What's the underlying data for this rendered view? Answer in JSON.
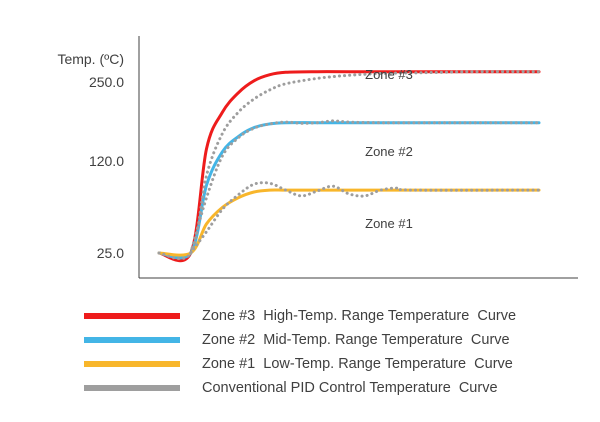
{
  "chart_data": {
    "type": "line",
    "ylabel": "Temp. (ºC)",
    "yticks": [
      "250.0",
      "120.0",
      "25.0"
    ],
    "ytick_values": [
      250,
      120,
      25
    ],
    "ylim": [
      10,
      290
    ],
    "xlim": [
      0,
      12
    ],
    "grid": false,
    "legend_position": "bottom",
    "zone_labels": [
      "Zone #3",
      "Zone #2",
      "Zone #1"
    ],
    "series": [
      {
        "name": "Zone #3  High-Temp. Range Temperature  Curve",
        "color": "#ee1c1c",
        "dashed": false,
        "x": [
          0,
          1,
          1.5,
          2,
          2.5,
          3,
          3.5,
          4,
          5,
          6,
          8,
          10,
          12
        ],
        "y": [
          25,
          25,
          140,
          200,
          232,
          252,
          262,
          266,
          267,
          267,
          267,
          267,
          267
        ]
      },
      {
        "name": "Zone #2  Mid-Temp. Range Temperature  Curve",
        "color": "#43b5e6",
        "dashed": false,
        "x": [
          0,
          1,
          1.5,
          2,
          2.5,
          3,
          3.5,
          4,
          5,
          6,
          8,
          10,
          12
        ],
        "y": [
          25,
          25,
          95,
          135,
          160,
          175,
          181,
          183,
          183,
          183,
          183,
          183,
          183
        ]
      },
      {
        "name": "Zone #1  Low-Temp. Range Temperature  Curve",
        "color": "#f8b62b",
        "dashed": false,
        "x": [
          0,
          1,
          1.5,
          2,
          2.5,
          3,
          3.5,
          4,
          5,
          6,
          8,
          10,
          12
        ],
        "y": [
          25,
          25,
          55,
          72,
          82,
          88,
          90,
          90,
          90,
          90,
          90,
          90,
          90
        ]
      },
      {
        "name": "Conventional PID Control Temperature  Curve",
        "color": "#9e9e9e",
        "dashed": true,
        "x": [
          0,
          1,
          1.5,
          2,
          2.5,
          3,
          3.5,
          4,
          5,
          6,
          7,
          8,
          9,
          10,
          12
        ],
        "y": [
          25,
          25,
          105,
          165,
          200,
          222,
          237,
          247,
          256,
          261,
          264,
          265,
          266,
          267,
          267
        ]
      },
      {
        "name": "",
        "color": "#9e9e9e",
        "dashed": true,
        "x": [
          1,
          1.5,
          2,
          2.5,
          3,
          3.5,
          4,
          4.5,
          5,
          5.5,
          6,
          7,
          8,
          12
        ],
        "y": [
          25,
          82,
          128,
          158,
          174,
          181,
          184,
          182,
          183,
          186,
          184,
          183,
          183,
          183
        ]
      },
      {
        "name": "",
        "color": "#9e9e9e",
        "dashed": true,
        "x": [
          1,
          1.5,
          2,
          2.5,
          3,
          3.5,
          4,
          4.5,
          5,
          5.5,
          6,
          6.5,
          7,
          7.5,
          8,
          12
        ],
        "y": [
          25,
          47,
          70,
          85,
          96,
          97,
          90,
          84,
          89,
          94,
          86,
          84,
          90,
          92,
          90,
          90
        ]
      }
    ]
  }
}
